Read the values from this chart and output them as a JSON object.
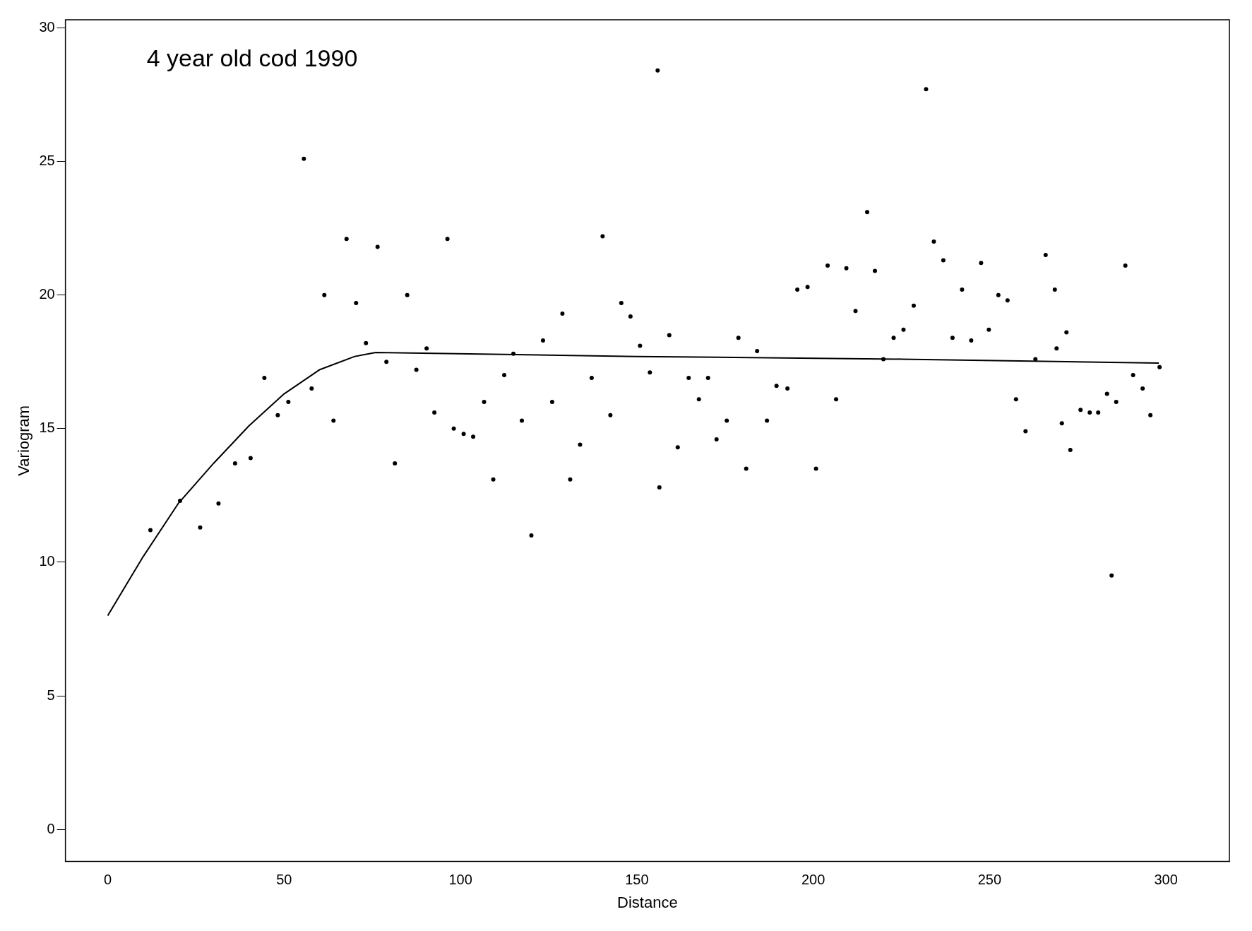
{
  "chart_data": {
    "type": "scatter",
    "xlabel": "Distance",
    "ylabel": "Variogram",
    "annotations": [
      "4 year old cod 1990"
    ],
    "xlim": [
      -12,
      318
    ],
    "ylim": [
      -1.2,
      30.3
    ],
    "xticks": [
      0,
      50,
      100,
      150,
      200,
      250,
      300
    ],
    "yticks": [
      0,
      5,
      10,
      15,
      20,
      25,
      30
    ],
    "grid": false,
    "legend": false,
    "series": [
      {
        "color": "#000000",
        "marker": "circle",
        "x": [
          12.1,
          20.5,
          26.2,
          31.4,
          36.1,
          40.5,
          44.4,
          48.2,
          51.2,
          55.6,
          57.8,
          61.4,
          64.0,
          67.7,
          70.4,
          73.2,
          76.5,
          79.0,
          81.4,
          84.9,
          87.5,
          90.4,
          92.6,
          96.3,
          98.1,
          100.9,
          103.6,
          106.7,
          109.3,
          112.4,
          115.0,
          117.4,
          120.1,
          123.4,
          126.0,
          128.9,
          131.1,
          133.9,
          137.2,
          140.3,
          142.5,
          145.6,
          148.2,
          150.9,
          153.7,
          155.9,
          156.4,
          159.2,
          161.6,
          164.7,
          167.6,
          170.2,
          172.6,
          175.5,
          178.8,
          181.0,
          184.1,
          186.9,
          189.6,
          192.7,
          195.5,
          198.4,
          200.8,
          204.1,
          206.5,
          209.4,
          212.0,
          215.3,
          217.5,
          219.9,
          222.8,
          225.6,
          228.5,
          232.0,
          234.2,
          236.9,
          239.5,
          242.2,
          244.8,
          247.6,
          249.8,
          252.5,
          255.1,
          257.5,
          260.2,
          263.0,
          265.9,
          268.5,
          269.0,
          270.5,
          271.8,
          272.9,
          275.8,
          278.4,
          280.8,
          283.3,
          284.6,
          285.9,
          288.5,
          290.7,
          293.4,
          295.6,
          298.2
        ],
        "values": [
          11.2,
          12.3,
          11.3,
          12.2,
          13.7,
          13.9,
          16.9,
          15.5,
          16.0,
          25.1,
          16.5,
          20.0,
          15.3,
          22.1,
          19.7,
          18.2,
          21.8,
          17.5,
          13.7,
          20.0,
          17.2,
          18.0,
          15.6,
          22.1,
          15.0,
          14.8,
          14.7,
          16.0,
          13.1,
          17.0,
          17.8,
          15.3,
          11.0,
          18.3,
          16.0,
          19.3,
          13.1,
          14.4,
          16.9,
          22.2,
          15.5,
          19.7,
          19.2,
          18.1,
          17.1,
          28.4,
          12.8,
          18.5,
          14.3,
          16.9,
          16.1,
          16.9,
          14.6,
          15.3,
          18.4,
          13.5,
          17.9,
          15.3,
          16.6,
          16.5,
          20.2,
          20.3,
          13.5,
          21.1,
          16.1,
          21.0,
          19.4,
          23.1,
          20.9,
          17.6,
          18.4,
          18.7,
          19.6,
          27.7,
          22.0,
          21.3,
          18.4,
          20.2,
          18.3,
          21.2,
          18.7,
          20.0,
          19.8,
          16.1,
          14.9,
          17.6,
          21.5,
          20.2,
          18.0,
          15.2,
          18.6,
          14.2,
          15.7,
          15.6,
          15.6,
          16.3,
          9.5,
          16.0,
          21.1,
          17.0,
          16.5,
          15.5,
          17.3
        ]
      },
      {
        "type": "line",
        "color": "#000000",
        "marker": "none",
        "x": [
          0,
          10,
          20,
          30,
          40,
          50,
          60,
          70,
          76,
          150,
          225,
          298
        ],
        "values": [
          8.0,
          10.2,
          12.2,
          13.7,
          15.1,
          16.3,
          17.2,
          17.7,
          17.85,
          17.7,
          17.6,
          17.45
        ]
      }
    ]
  }
}
